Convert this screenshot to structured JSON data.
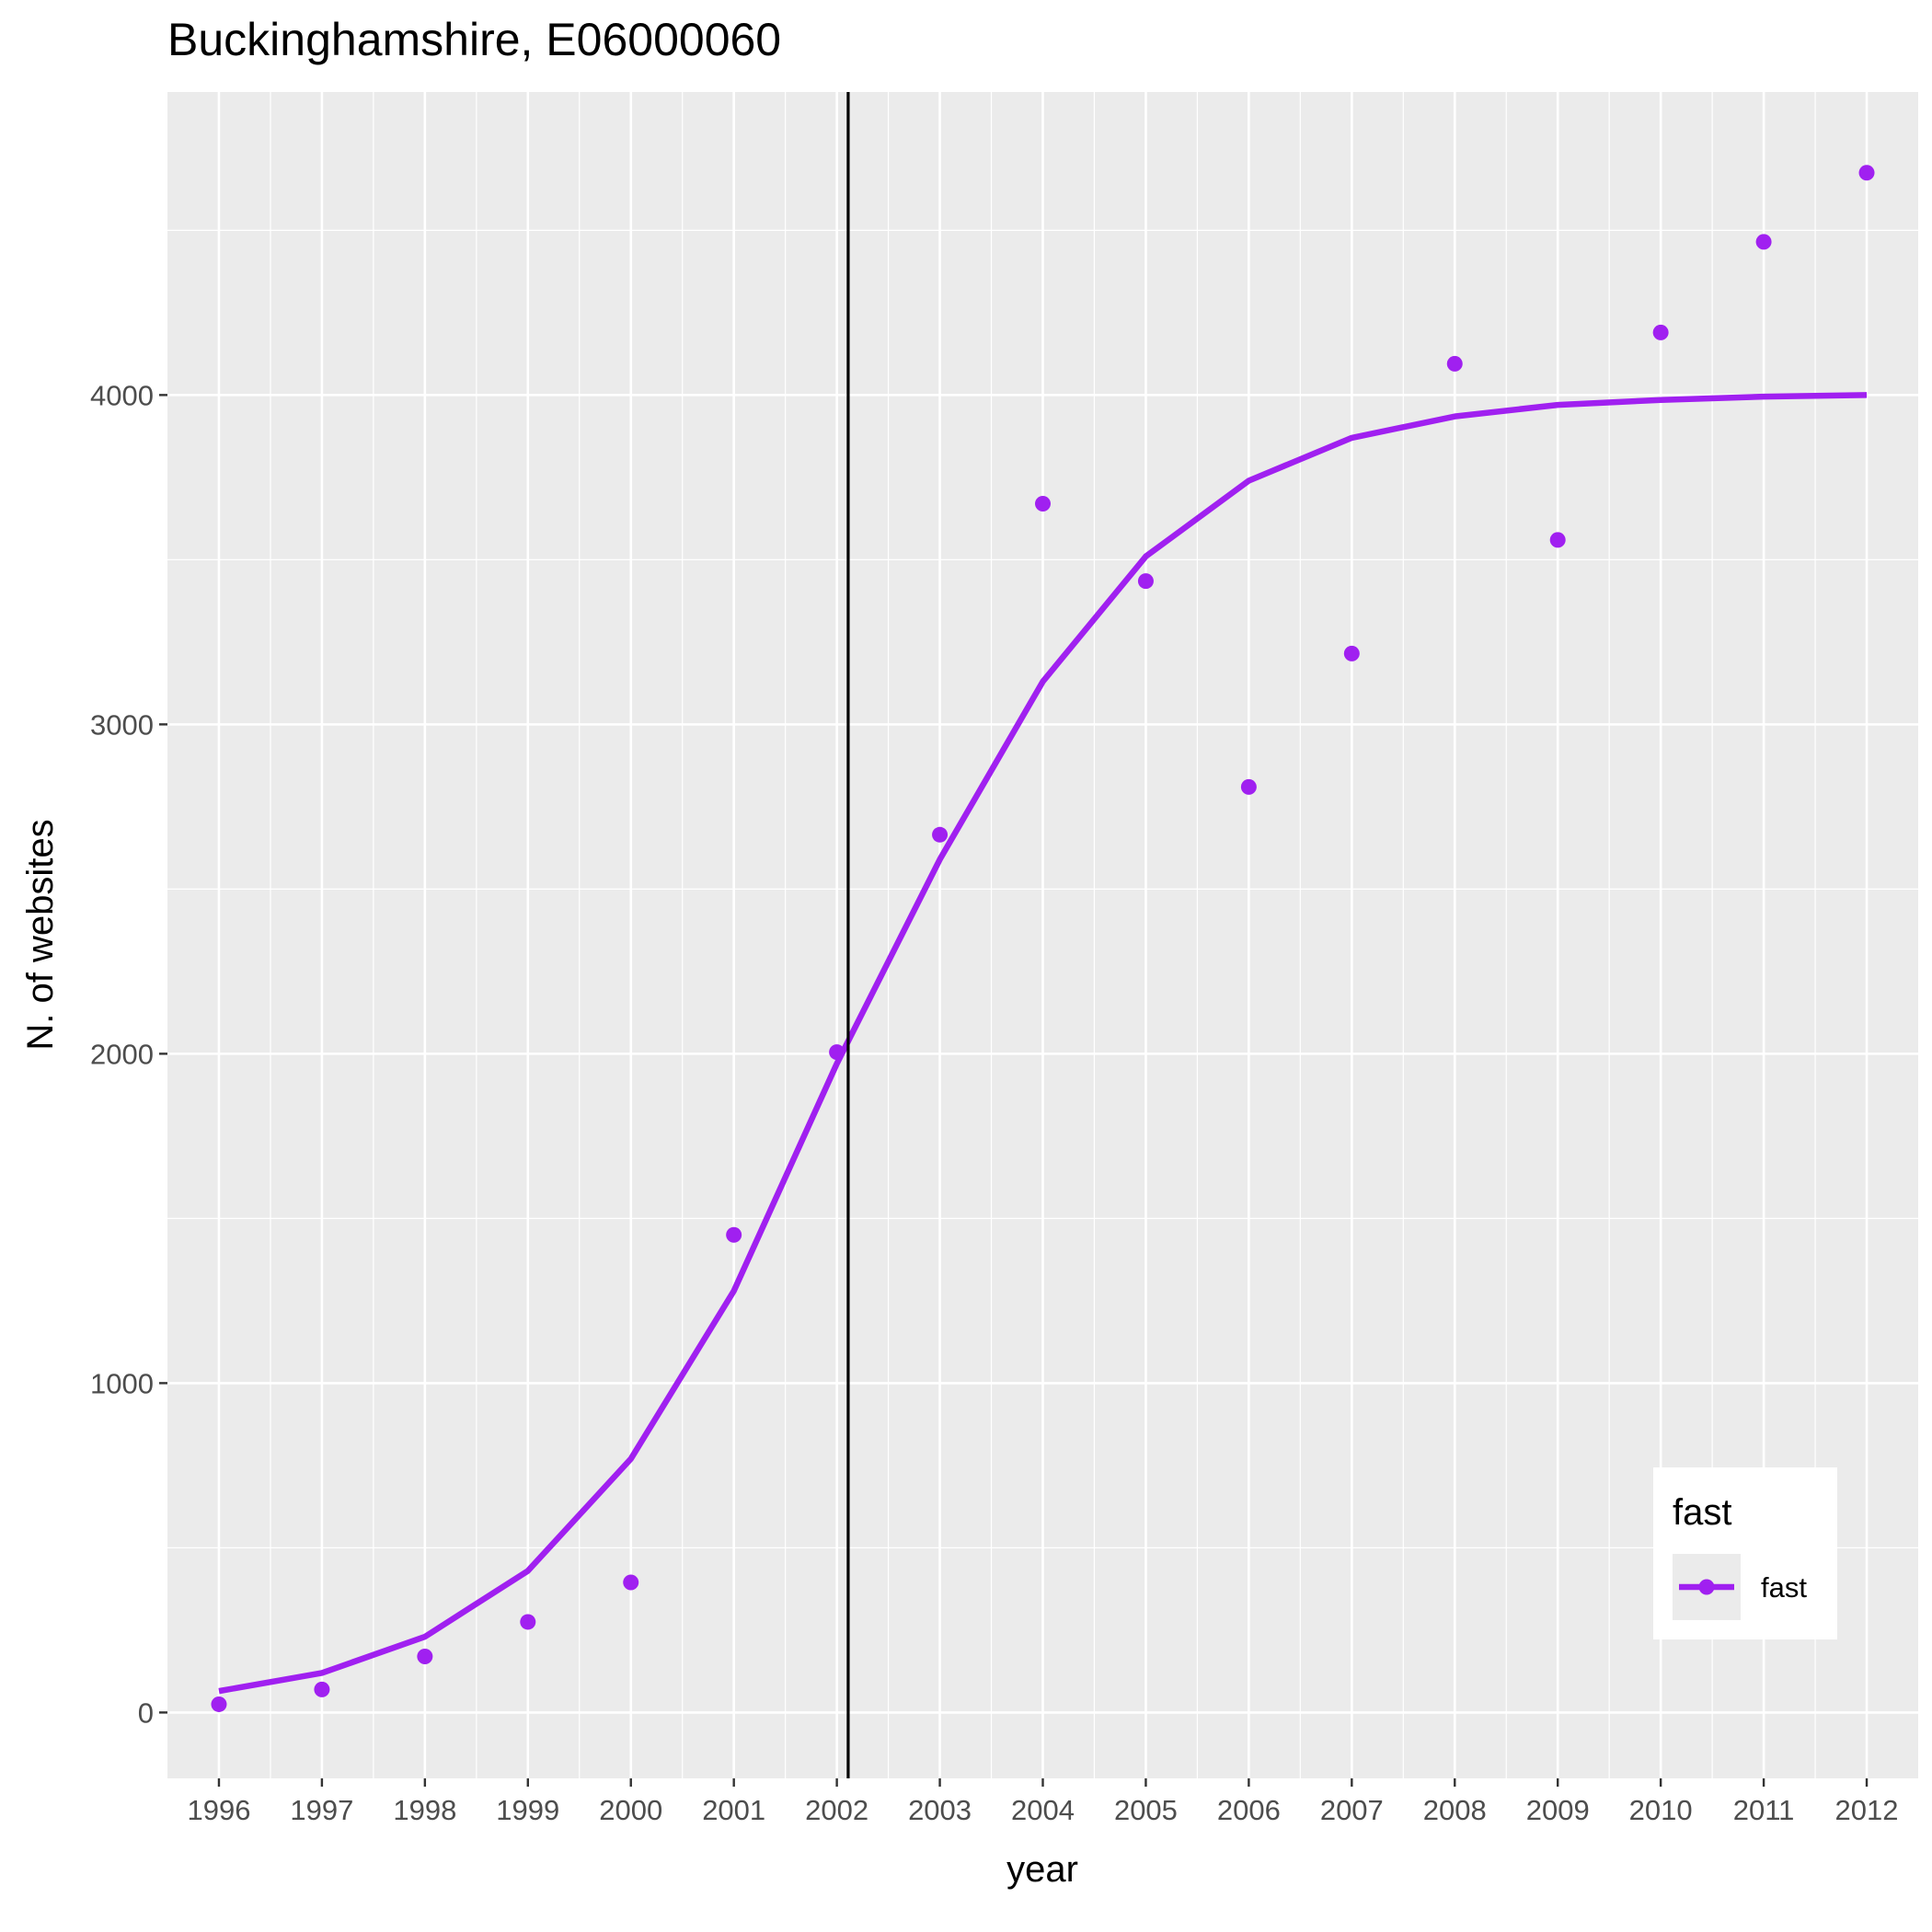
{
  "chart_data": {
    "type": "line",
    "title": "Buckinghamshire, E06000060",
    "xlabel": "year",
    "ylabel": "N. of websites",
    "x": [
      1996,
      1997,
      1998,
      1999,
      2000,
      2001,
      2002,
      2003,
      2004,
      2005,
      2006,
      2007,
      2008,
      2009,
      2010,
      2011,
      2012
    ],
    "x_tick_labels": [
      "1996",
      "1997",
      "1998",
      "1999",
      "2000",
      "2001",
      "2002",
      "2003",
      "2004",
      "2005",
      "2006",
      "2007",
      "2008",
      "2009",
      "2010",
      "2011",
      "2012"
    ],
    "y_ticks": [
      0,
      1000,
      2000,
      3000,
      4000
    ],
    "y_tick_labels": [
      "0",
      "1000",
      "2000",
      "3000",
      "4000"
    ],
    "xlim": [
      1995.5,
      2012.5
    ],
    "ylim": [
      -200,
      4920
    ],
    "series": [
      {
        "name": "fast",
        "kind": "points",
        "color": "#a020f0",
        "values": [
          25,
          70,
          170,
          275,
          395,
          1450,
          2005,
          2665,
          3670,
          3435,
          2810,
          3215,
          4095,
          3560,
          4190,
          4465,
          4675
        ]
      },
      {
        "name": "fast",
        "kind": "line",
        "color": "#a020f0",
        "values": [
          65,
          120,
          230,
          430,
          770,
          1280,
          1970,
          2590,
          3130,
          3510,
          3740,
          3870,
          3935,
          3970,
          3985,
          3995,
          4000
        ]
      }
    ],
    "vline": {
      "x": 2002.11,
      "color": "#000000"
    },
    "legend": {
      "title": "fast",
      "labels": [
        "fast"
      ],
      "position": "bottom-right inside"
    },
    "grid": true,
    "panel_background": "#ebebeb",
    "grid_color": "#ffffff"
  }
}
